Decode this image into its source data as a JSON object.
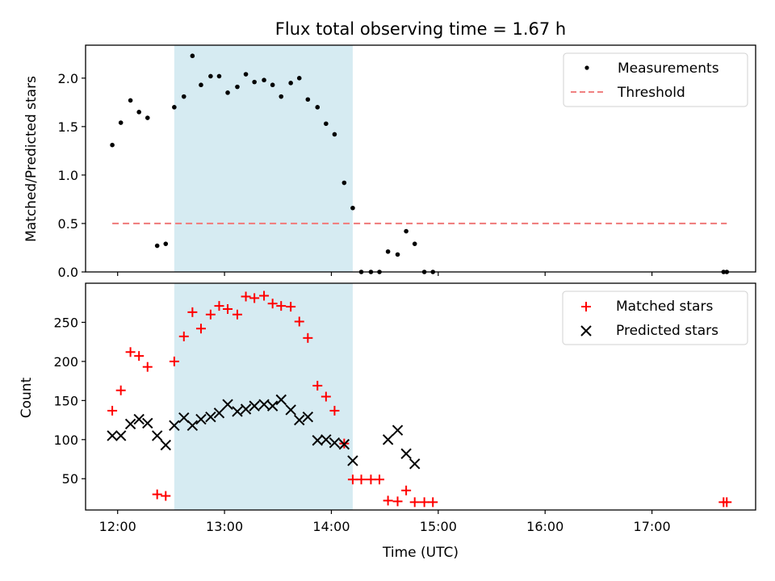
{
  "figure": {
    "title": "Flux total observing time = 1.67 h"
  },
  "chart_data": [
    {
      "type": "scatter",
      "panel": "top",
      "ylabel": "Matched/Predicted stars",
      "xlabel": "",
      "ylim": [
        0,
        2.34
      ],
      "xlim": [
        11.7,
        17.97
      ],
      "yticks": [
        0.0,
        0.5,
        1.0,
        1.5,
        2.0
      ],
      "ytick_labels": [
        "0.0",
        "0.5",
        "1.0",
        "1.5",
        "2.0"
      ],
      "grid": false,
      "legend_position": "top-right",
      "highlight_span": [
        12.53,
        14.2
      ],
      "series": [
        {
          "name": "Measurements",
          "kind": "points",
          "color": "#000000",
          "x": [
            11.95,
            12.03,
            12.12,
            12.2,
            12.28,
            12.37,
            12.45,
            12.53,
            12.62,
            12.7,
            12.78,
            12.87,
            12.95,
            13.03,
            13.12,
            13.2,
            13.28,
            13.37,
            13.45,
            13.53,
            13.62,
            13.7,
            13.78,
            13.87,
            13.95,
            14.03,
            14.12,
            14.2,
            14.28,
            14.37,
            14.45,
            14.53,
            14.62,
            14.7,
            14.78,
            14.87,
            14.95,
            17.67,
            17.7
          ],
          "y": [
            1.31,
            1.54,
            1.77,
            1.65,
            1.59,
            0.27,
            0.29,
            1.7,
            1.81,
            2.23,
            1.93,
            2.02,
            2.02,
            1.85,
            1.91,
            2.04,
            1.96,
            1.98,
            1.93,
            1.81,
            1.95,
            2.0,
            1.78,
            1.7,
            1.53,
            1.42,
            0.92,
            0.66,
            0.0,
            0.0,
            0.0,
            0.21,
            0.18,
            0.42,
            0.29,
            0.0,
            0.0,
            0.0,
            0.0
          ]
        },
        {
          "name": "Threshold",
          "kind": "dashed-line",
          "color": "#f08080",
          "x": [
            11.95,
            17.7
          ],
          "y": [
            0.5,
            0.5
          ]
        }
      ]
    },
    {
      "type": "scatter",
      "panel": "bottom",
      "ylabel": "Count",
      "xlabel": "Time (UTC)",
      "ylim": [
        10,
        300
      ],
      "xlim": [
        11.7,
        17.97
      ],
      "yticks": [
        50,
        100,
        150,
        200,
        250
      ],
      "ytick_labels": [
        "50",
        "100",
        "150",
        "200",
        "250"
      ],
      "xticks": [
        12,
        13,
        14,
        15,
        16,
        17
      ],
      "xtick_labels": [
        "12:00",
        "13:00",
        "14:00",
        "15:00",
        "16:00",
        "17:00"
      ],
      "grid": false,
      "legend_position": "top-right",
      "highlight_span": [
        12.53,
        14.2
      ],
      "series": [
        {
          "name": "Matched stars",
          "kind": "plus",
          "color": "#ff0000",
          "x": [
            11.95,
            12.03,
            12.12,
            12.2,
            12.28,
            12.37,
            12.45,
            12.53,
            12.62,
            12.7,
            12.78,
            12.87,
            12.95,
            13.03,
            13.12,
            13.2,
            13.28,
            13.37,
            13.45,
            13.53,
            13.62,
            13.7,
            13.78,
            13.87,
            13.95,
            14.03,
            14.12,
            14.2,
            14.28,
            14.37,
            14.45,
            14.53,
            14.62,
            14.7,
            14.78,
            14.87,
            14.95,
            17.67,
            17.7
          ],
          "y": [
            137,
            163,
            212,
            207,
            193,
            30,
            28,
            200,
            232,
            263,
            242,
            260,
            271,
            267,
            260,
            283,
            281,
            284,
            274,
            271,
            270,
            251,
            230,
            169,
            155,
            137,
            95,
            49,
            49,
            49,
            49,
            22,
            21,
            35,
            20,
            20,
            20,
            20,
            20
          ]
        },
        {
          "name": "Predicted stars",
          "kind": "cross",
          "color": "#000000",
          "x": [
            11.95,
            12.03,
            12.12,
            12.2,
            12.28,
            12.37,
            12.45,
            12.53,
            12.62,
            12.7,
            12.78,
            12.87,
            12.95,
            13.03,
            13.12,
            13.2,
            13.28,
            13.37,
            13.45,
            13.53,
            13.62,
            13.7,
            13.78,
            13.87,
            13.95,
            14.03,
            14.12,
            14.2,
            14.53,
            14.62,
            14.7,
            14.78
          ],
          "y": [
            105,
            105,
            120,
            126,
            121,
            105,
            93,
            118,
            128,
            118,
            126,
            129,
            134,
            145,
            136,
            139,
            143,
            145,
            143,
            151,
            138,
            125,
            129,
            99,
            100,
            96,
            94,
            73,
            100,
            112,
            82,
            69
          ]
        }
      ]
    }
  ]
}
